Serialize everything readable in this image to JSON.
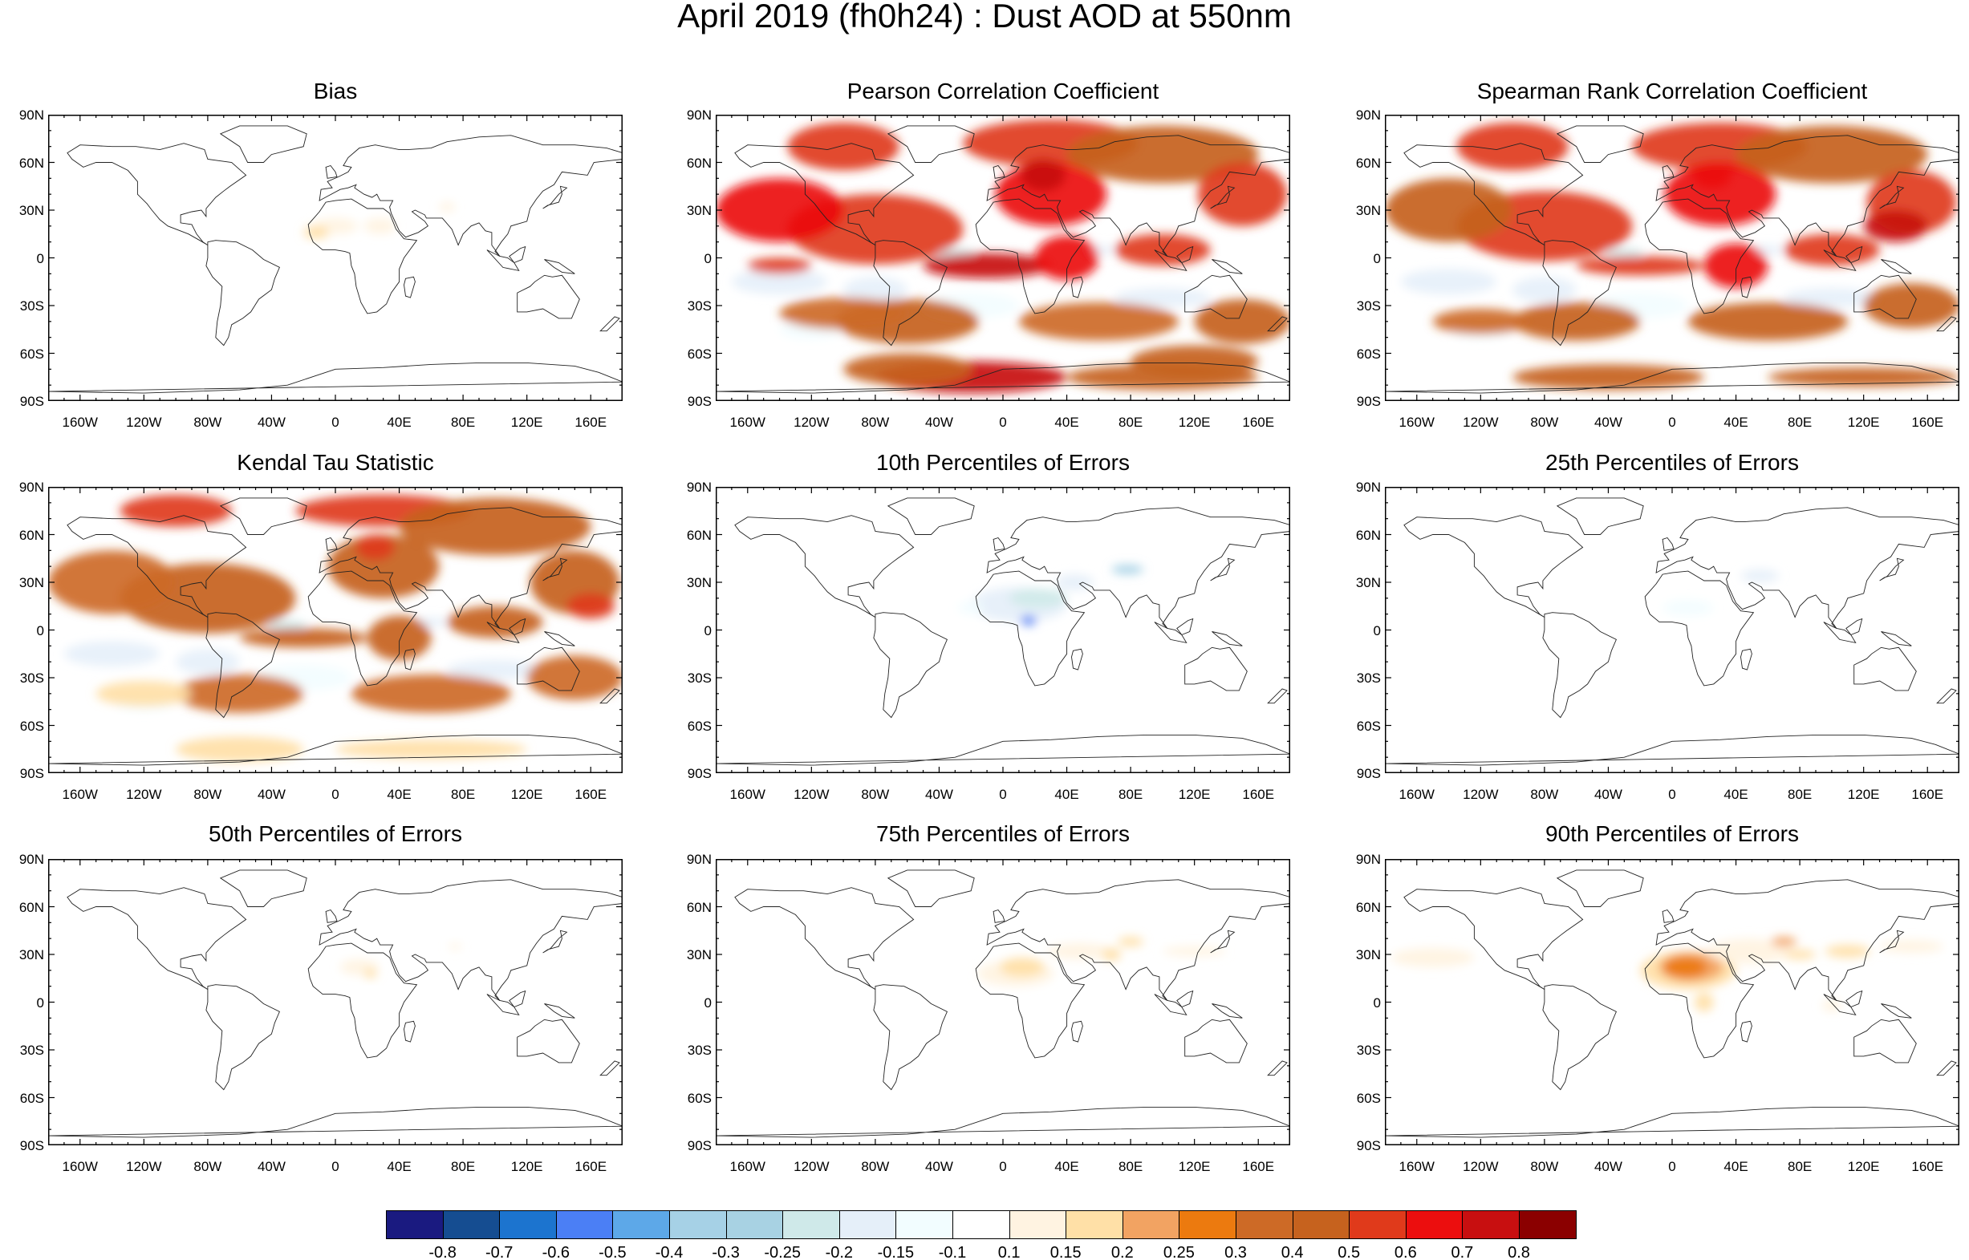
{
  "title": "April 2019 (fh0h24) : Dust AOD at 550nm",
  "lat_ticks": [
    "90N",
    "60N",
    "30N",
    "0",
    "30S",
    "60S",
    "90S"
  ],
  "lon_ticks": [
    "160W",
    "120W",
    "80W",
    "40W",
    "0",
    "40E",
    "80E",
    "120E",
    "160E"
  ],
  "lon_values": [
    -160,
    -120,
    -80,
    -40,
    0,
    40,
    80,
    120,
    160
  ],
  "lat_values": [
    90,
    60,
    30,
    0,
    -30,
    -60,
    -90
  ],
  "panels": [
    {
      "title": "Bias",
      "pattern": "bias"
    },
    {
      "title": "Pearson Correlation Coefficient",
      "pattern": "pearson"
    },
    {
      "title": "Spearman Rank Correlation Coefficient",
      "pattern": "spearman"
    },
    {
      "title": "Kendal Tau Statistic",
      "pattern": "kendall"
    },
    {
      "title": "10th Percentiles of Errors",
      "pattern": "p10"
    },
    {
      "title": "25th Percentiles of Errors",
      "pattern": "p25"
    },
    {
      "title": "50th Percentiles of Errors",
      "pattern": "p50"
    },
    {
      "title": "75th Percentiles of Errors",
      "pattern": "p75"
    },
    {
      "title": "90th Percentiles of Errors",
      "pattern": "p90"
    }
  ],
  "colorbar": {
    "labels": [
      "-0.8",
      "-0.7",
      "-0.6",
      "-0.5",
      "-0.4",
      "-0.3",
      "-0.25",
      "-0.2",
      "-0.15",
      "-0.1",
      "0.1",
      "0.15",
      "0.2",
      "0.25",
      "0.3",
      "0.4",
      "0.5",
      "0.6",
      "0.7",
      "0.8"
    ],
    "colors": [
      "#1a1a80",
      "#154d91",
      "#1c74cf",
      "#4b7ff5",
      "#5da8e8",
      "#a6d1e6",
      "#a8d2e3",
      "#cfe9e9",
      "#e5eff9",
      "#f2fdff",
      "#ffffff",
      "#fff3e1",
      "#ffe0a7",
      "#f2a362",
      "#ec7a0f",
      "#cd6a26",
      "#c6621e",
      "#e03a1b",
      "#ec0e0e",
      "#c80f10",
      "#8b0000"
    ]
  }
}
